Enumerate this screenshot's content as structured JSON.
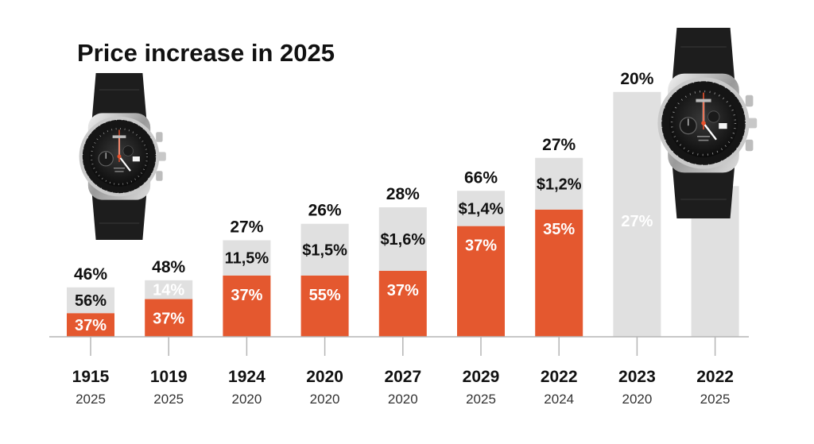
{
  "chart_data": {
    "type": "bar",
    "stacked": true,
    "title": "Price increase in 2025",
    "categories": [
      {
        "year": "1915",
        "sub": "2025"
      },
      {
        "year": "1019",
        "sub": "2025"
      },
      {
        "year": "1924",
        "sub": "2020"
      },
      {
        "year": "2020",
        "sub": "2020"
      },
      {
        "year": "2027",
        "sub": "2020"
      },
      {
        "year": "2029",
        "sub": "2025"
      },
      {
        "year": "2022",
        "sub": "2024"
      },
      {
        "year": "2023",
        "sub": "2020"
      },
      {
        "year": "2022",
        "sub": "2025"
      }
    ],
    "series": [
      {
        "name": "orange",
        "color": "#e4582f",
        "values": [
          10,
          16,
          26,
          26,
          28,
          47,
          54,
          0,
          0
        ]
      },
      {
        "name": "grey",
        "color": "#e0e0e0",
        "values": [
          11,
          8,
          15,
          22,
          27,
          15,
          22,
          104,
          64
        ]
      }
    ],
    "orange_labels": [
      "37%",
      "37%",
      "37%",
      "55%",
      "37%",
      "37%",
      "35%",
      "",
      ""
    ],
    "grey_labels": [
      "56%",
      "14%",
      "11,5%",
      "$1,5%",
      "$1,6%",
      "$1,4%",
      "$1,2%",
      "27%",
      ""
    ],
    "top_labels": [
      "46%",
      "48%",
      "27%",
      "26%",
      "28%",
      "66%",
      "27%",
      "20%",
      ""
    ],
    "ylim": [
      0,
      110
    ],
    "grid": false,
    "label_colors": {
      "orange": "#ffffff",
      "grey_dark": "#111111",
      "grey_light": "#ffffff"
    },
    "light_grey_label_indices": [
      1,
      7
    ]
  },
  "images": {
    "watch_left": "watch-icon",
    "watch_right": "watch-icon"
  }
}
